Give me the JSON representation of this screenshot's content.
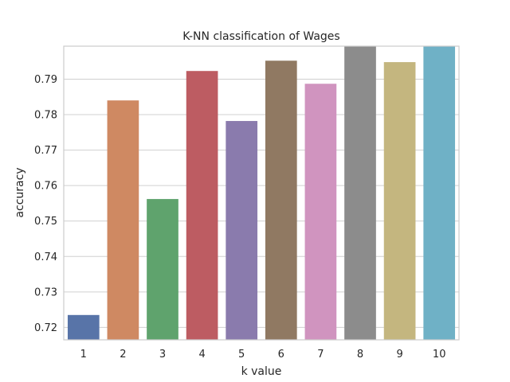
{
  "chart_data": {
    "type": "bar",
    "title": "K-NN classification of Wages",
    "xlabel": "k value",
    "ylabel": "accuracy",
    "categories": [
      "1",
      "2",
      "3",
      "4",
      "5",
      "6",
      "7",
      "8",
      "9",
      "10"
    ],
    "values": [
      0.7235,
      0.784,
      0.7562,
      0.7923,
      0.7782,
      0.7952,
      0.7887,
      0.7993,
      0.7948,
      0.7993
    ],
    "colors": [
      "#5874a8",
      "#cf8962",
      "#5fa36d",
      "#bd5c62",
      "#8a7bad",
      "#907962",
      "#d094bf",
      "#8c8c8c",
      "#c4b67f",
      "#6fb1c6"
    ],
    "ylim": [
      0.7165,
      0.7993
    ],
    "yticks": [
      0.72,
      0.73,
      0.74,
      0.75,
      0.76,
      0.77,
      0.78,
      0.79
    ],
    "ytick_labels": [
      "0.72",
      "0.73",
      "0.74",
      "0.75",
      "0.76",
      "0.77",
      "0.78",
      "0.79"
    ],
    "grid": true,
    "legend": "none"
  }
}
